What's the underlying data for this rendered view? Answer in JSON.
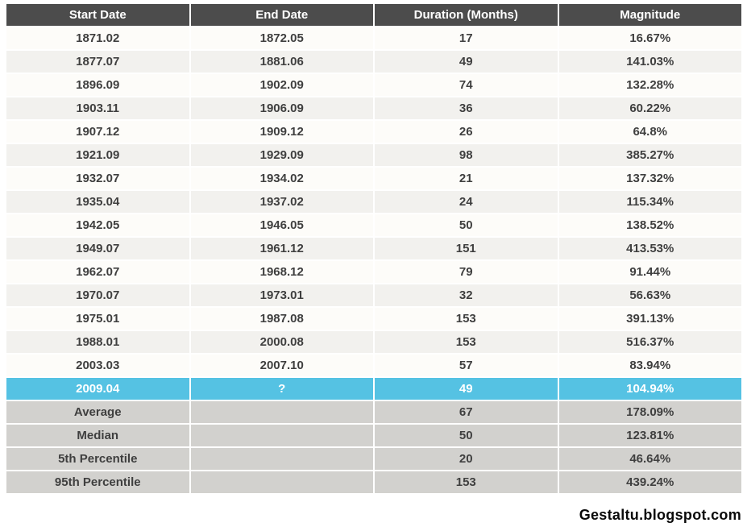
{
  "colors": {
    "header_bg": "#4c4c4c",
    "header_text": "#ffffff",
    "row_even_bg": "#fdfcf9",
    "row_odd_bg": "#f2f1ee",
    "highlight_bg": "#55c2e3",
    "highlight_text": "#ffffff",
    "summary_bg": "#d2d1ce",
    "cell_text": "#3f3f3f",
    "footer_text": "#0a0a0a"
  },
  "chart_data": {
    "type": "table",
    "columns": [
      "Start Date",
      "End Date",
      "Duration (Months)",
      "Magnitude"
    ],
    "rows": [
      {
        "start_date": "1871.02",
        "end_date": "1872.05",
        "duration_months": "17",
        "magnitude": "16.67%"
      },
      {
        "start_date": "1877.07",
        "end_date": "1881.06",
        "duration_months": "49",
        "magnitude": "141.03%"
      },
      {
        "start_date": "1896.09",
        "end_date": "1902.09",
        "duration_months": "74",
        "magnitude": "132.28%"
      },
      {
        "start_date": "1903.11",
        "end_date": "1906.09",
        "duration_months": "36",
        "magnitude": "60.22%"
      },
      {
        "start_date": "1907.12",
        "end_date": "1909.12",
        "duration_months": "26",
        "magnitude": "64.8%"
      },
      {
        "start_date": "1921.09",
        "end_date": "1929.09",
        "duration_months": "98",
        "magnitude": "385.27%"
      },
      {
        "start_date": "1932.07",
        "end_date": "1934.02",
        "duration_months": "21",
        "magnitude": "137.32%"
      },
      {
        "start_date": "1935.04",
        "end_date": "1937.02",
        "duration_months": "24",
        "magnitude": "115.34%"
      },
      {
        "start_date": "1942.05",
        "end_date": "1946.05",
        "duration_months": "50",
        "magnitude": "138.52%"
      },
      {
        "start_date": "1949.07",
        "end_date": "1961.12",
        "duration_months": "151",
        "magnitude": "413.53%"
      },
      {
        "start_date": "1962.07",
        "end_date": "1968.12",
        "duration_months": "79",
        "magnitude": "91.44%"
      },
      {
        "start_date": "1970.07",
        "end_date": "1973.01",
        "duration_months": "32",
        "magnitude": "56.63%"
      },
      {
        "start_date": "1975.01",
        "end_date": "1987.08",
        "duration_months": "153",
        "magnitude": "391.13%"
      },
      {
        "start_date": "1988.01",
        "end_date": "2000.08",
        "duration_months": "153",
        "magnitude": "516.37%"
      },
      {
        "start_date": "2003.03",
        "end_date": "2007.10",
        "duration_months": "57",
        "magnitude": "83.94%"
      },
      {
        "start_date": "2009.04",
        "end_date": "?",
        "duration_months": "49",
        "magnitude": "104.94%",
        "highlight": true
      }
    ],
    "summary_rows": [
      {
        "label": "Average",
        "end_date": "",
        "duration_months": "67",
        "magnitude": "178.09%"
      },
      {
        "label": "Median",
        "end_date": "",
        "duration_months": "50",
        "magnitude": "123.81%"
      },
      {
        "label": "5th Percentile",
        "end_date": "",
        "duration_months": "20",
        "magnitude": "46.64%"
      },
      {
        "label": "95th Percentile",
        "end_date": "",
        "duration_months": "153",
        "magnitude": "439.24%"
      }
    ]
  },
  "footer": {
    "credit": "Gestaltu.blogspot.com"
  }
}
